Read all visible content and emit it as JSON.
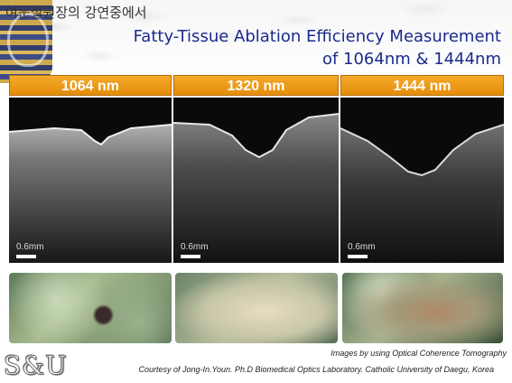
{
  "header": {
    "korean_title": "여운철원장의 강연중에서",
    "title_line1": "Fatty-Tissue Ablation Efficiency Measurement",
    "title_line2": "of 1064nm & 1444nm"
  },
  "columns": [
    {
      "label": "1064 nm",
      "scale": "0.6mm"
    },
    {
      "label": "1320 nm",
      "scale": "0.6mm"
    },
    {
      "label": "1444 nm",
      "scale": "0.6mm"
    }
  ],
  "colors": {
    "title": "#1a2a8c",
    "header_orange": "#e8950f",
    "oct_bg": "#0a0a0a"
  },
  "footer": {
    "logo": "S&U",
    "caption_line1": "Images by using Optical Coherence Tomography",
    "caption_line2": "Courtesy of Jong-In.Youn. Ph.D Biomedical Optics Laboratory. Catholic University of Daegu, Korea"
  }
}
